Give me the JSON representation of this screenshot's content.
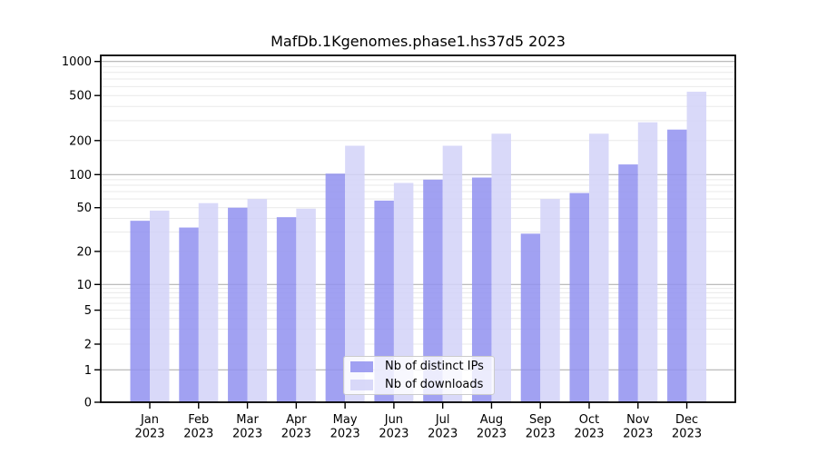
{
  "chart_data": {
    "type": "bar",
    "title": "MafDb.1Kgenomes.phase1.hs37d5 2023",
    "categories": [
      "Jan",
      "Feb",
      "Mar",
      "Apr",
      "May",
      "Jun",
      "Jul",
      "Aug",
      "Sep",
      "Oct",
      "Nov",
      "Dec"
    ],
    "year_label": "2023",
    "series": [
      {
        "id": "distinct-ips",
        "name": "Nb of distinct IPs",
        "color": "rgba(145,145,240,0.85)",
        "values": [
          38,
          33,
          50,
          41,
          102,
          58,
          90,
          94,
          29,
          68,
          123,
          250
        ]
      },
      {
        "id": "downloads",
        "name": "Nb of downloads",
        "color": "rgba(210,210,248,0.85)",
        "values": [
          47,
          55,
          60,
          49,
          180,
          84,
          180,
          230,
          60,
          230,
          290,
          540
        ]
      }
    ],
    "yticks": [
      0,
      1,
      2,
      5,
      10,
      20,
      50,
      100,
      200,
      500,
      1000
    ],
    "ylim": [
      0,
      1000
    ],
    "scale": "symlog",
    "grid": true,
    "legend_position": "lower center"
  },
  "colors": {
    "major_grid": "#b2b2b2",
    "minor_grid": "#e9e9e9",
    "spine": "#000000",
    "tick": "#000000",
    "text": "#000000"
  }
}
